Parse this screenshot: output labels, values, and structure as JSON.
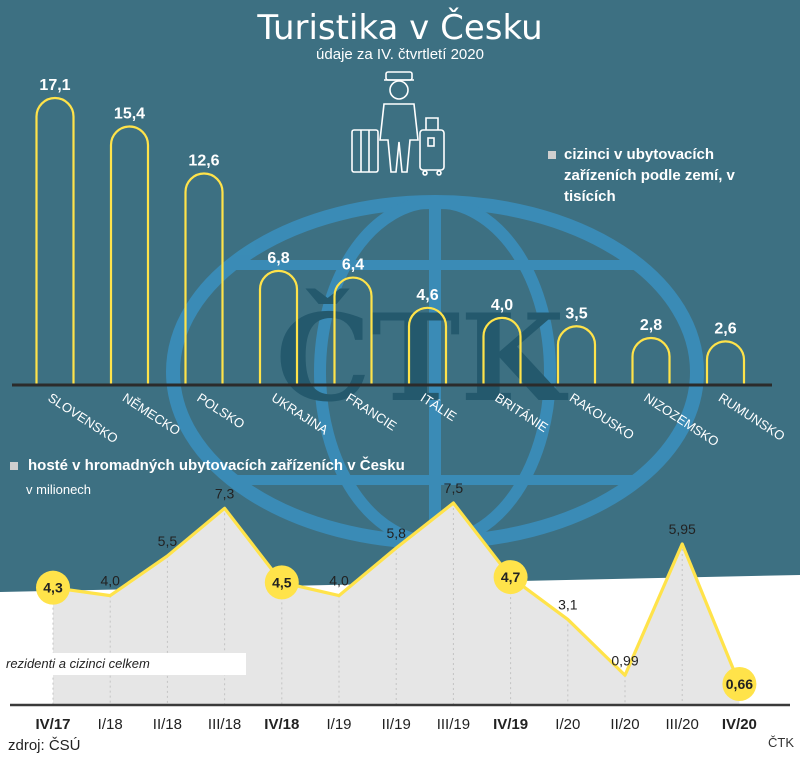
{
  "title": "Turistika v Česku",
  "subtitle": "údaje za IV. čtvrtletí 2020",
  "watermark": "ČTK",
  "colors": {
    "background": "#3d7082",
    "accent": "#ffe34a",
    "area": "#e6e6e6",
    "text_light": "#ffffff"
  },
  "icon": "tourist-with-luggage-icon",
  "source": "zdroj: ČSÚ",
  "credit": "ČTK",
  "chart_data": [
    {
      "type": "bar",
      "legend": "cizinci v ubytovacích zařízeních podle zemí, v tisících",
      "categories": [
        "SLOVENSKO",
        "NĚMECKO",
        "POLSKO",
        "UKRAJINA",
        "FRANCIE",
        "ITÁLIE",
        "BRITÁNIE",
        "RAKOUSKO",
        "NIZOZEMSKO",
        "RUMUNSKO"
      ],
      "values": [
        17.1,
        15.4,
        12.6,
        6.8,
        6.4,
        4.6,
        4.0,
        3.5,
        2.8,
        2.6
      ],
      "value_labels": [
        "17,1",
        "15,4",
        "12,6",
        "6,8",
        "6,4",
        "4,6",
        "4,0",
        "3,5",
        "2,8",
        "2,6"
      ],
      "ylim": [
        0,
        17.1
      ]
    },
    {
      "type": "area",
      "legend": "hosté v hromadných ubytovacích zařízeních v Česku",
      "unit": "v milionech",
      "area_label": "rezidenti a cizinci celkem",
      "categories": [
        "IV/17",
        "I/18",
        "II/18",
        "III/18",
        "IV/18",
        "I/19",
        "II/19",
        "III/19",
        "IV/19",
        "I/20",
        "II/20",
        "III/20",
        "IV/20"
      ],
      "values": [
        4.3,
        4.0,
        5.5,
        7.3,
        4.5,
        4.0,
        5.8,
        7.5,
        4.7,
        3.1,
        0.99,
        5.95,
        0.66
      ],
      "value_labels": [
        "4,3",
        "4,0",
        "5,5",
        "7,3",
        "4,5",
        "4,0",
        "5,8",
        "7,5",
        "4,7",
        "3,1",
        "0,99",
        "5,95",
        "0,66"
      ],
      "highlighted": [
        0,
        4,
        8,
        12
      ],
      "ylim": [
        0,
        7.5
      ]
    }
  ]
}
